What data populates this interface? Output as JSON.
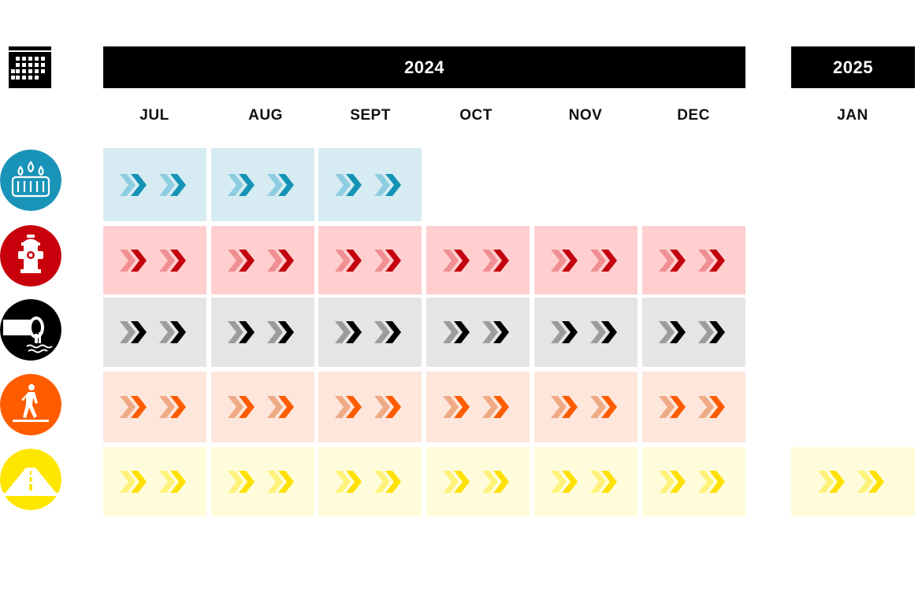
{
  "years": [
    {
      "label": "2024"
    },
    {
      "label": "2025"
    }
  ],
  "months": [
    "JUL",
    "AUG",
    "SEPT",
    "OCT",
    "NOV",
    "DEC",
    "JAN"
  ],
  "rows": [
    {
      "icon": "stormwater-drain-icon",
      "bg": "#d6ecf2",
      "light": "#8ccde0",
      "dark": "#1593b6",
      "circle": "#1a93b8",
      "active_months": [
        0,
        1,
        2
      ]
    },
    {
      "icon": "fire-hydrant-icon",
      "bg": "#ffcfcf",
      "light": "#f08f92",
      "dark": "#c3000d",
      "circle": "#c8000b",
      "active_months": [
        0,
        1,
        2,
        3,
        4,
        5
      ]
    },
    {
      "icon": "sewer-pipe-icon",
      "bg": "#e6e5e5",
      "light": "#9c9c9c",
      "dark": "#000000",
      "circle": "#000000",
      "active_months": [
        0,
        1,
        2,
        3,
        4,
        5
      ]
    },
    {
      "icon": "pedestrian-sidewalk-icon",
      "bg": "#fde6dc",
      "light": "#efaa85",
      "dark": "#ff5c00",
      "circle": "#ff5c00",
      "active_months": [
        0,
        1,
        2,
        3,
        4,
        5
      ]
    },
    {
      "icon": "road-paving-icon",
      "bg": "#fffcdb",
      "light": "#fff27a",
      "dark": "#ffe000",
      "circle": "#ffe600",
      "active_months": [
        0,
        1,
        2,
        3,
        4,
        5,
        6
      ]
    }
  ]
}
